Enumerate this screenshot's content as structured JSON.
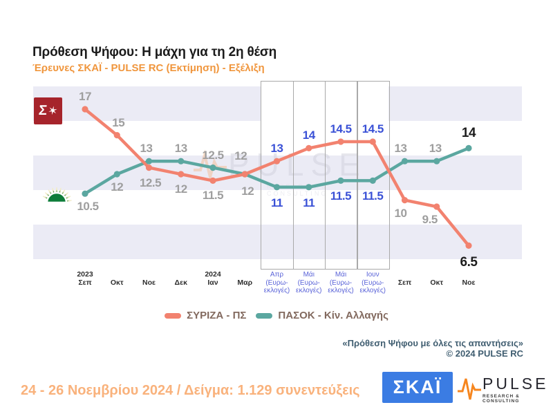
{
  "header": {
    "title": "Πρόθεση Ψήφου: Η μάχη για τη 2η θέση",
    "subtitle": "Έρευνες ΣΚΑΪ - PULSE RC   (Εκτίμηση) - Εξέλιξη"
  },
  "chart_data": {
    "type": "line",
    "title": "Πρόθεση Ψήφου: Η μάχη για τη 2η θέση",
    "categories": [
      {
        "lines": [
          "2023",
          "Σεπ"
        ],
        "euro": false
      },
      {
        "lines": [
          "Οκτ"
        ],
        "euro": false
      },
      {
        "lines": [
          "Νοε"
        ],
        "euro": false
      },
      {
        "lines": [
          "Δεκ"
        ],
        "euro": false
      },
      {
        "lines": [
          "2024",
          "Ιαν"
        ],
        "euro": false
      },
      {
        "lines": [
          "Μαρ"
        ],
        "euro": false
      },
      {
        "lines": [
          "Απρ",
          "(Ευρω-",
          "εκλογές)"
        ],
        "euro": true
      },
      {
        "lines": [
          "Μάι",
          "(Ευρω-",
          "εκλογές)"
        ],
        "euro": true
      },
      {
        "lines": [
          "Μάι",
          "(Ευρω-",
          "εκλογές)"
        ],
        "euro": true
      },
      {
        "lines": [
          "Ιουν",
          "(Ευρω-",
          "εκλογές)"
        ],
        "euro": true
      },
      {
        "lines": [
          "Σεπ"
        ],
        "euro": false
      },
      {
        "lines": [
          "Οκτ"
        ],
        "euro": false
      },
      {
        "lines": [
          "Νοε"
        ],
        "euro": false
      }
    ],
    "series": [
      {
        "name": "ΣΥΡΙΖΑ - ΠΣ",
        "color": "#f2826f",
        "values": [
          17,
          15,
          12.5,
          12,
          11.5,
          12,
          13,
          14,
          14.5,
          14.5,
          10,
          9.5,
          6.5
        ],
        "label_side": [
          "above",
          "above",
          "below",
          "below",
          "below",
          "below",
          "above",
          "above",
          "above",
          "above",
          "below",
          "below",
          "below"
        ],
        "label_offsets": [
          [
            0,
            0
          ],
          [
            2,
            0
          ],
          [
            2,
            3
          ],
          [
            0,
            3
          ],
          [
            0,
            3
          ],
          [
            4,
            6
          ],
          [
            0,
            0
          ],
          [
            0,
            0
          ],
          [
            0,
            0
          ],
          [
            0,
            0
          ],
          [
            -6,
            0
          ],
          [
            -10,
            0
          ],
          [
            0,
            5
          ]
        ]
      },
      {
        "name": "ΠΑΣΟΚ - Κίν. Αλλαγής",
        "color": "#5ba7a0",
        "values": [
          10.5,
          12,
          13,
          13,
          12.5,
          12,
          11,
          11,
          11.5,
          11.5,
          13,
          13,
          14
        ],
        "label_side": [
          "below",
          "below",
          "above",
          "above",
          "above",
          "above",
          "below",
          "below",
          "below",
          "below",
          "above",
          "above",
          "above"
        ],
        "label_offsets": [
          [
            4,
            0
          ],
          [
            0,
            0
          ],
          [
            -4,
            0
          ],
          [
            0,
            0
          ],
          [
            0,
            0
          ],
          [
            -6,
            -8
          ],
          [
            0,
            4
          ],
          [
            0,
            4
          ],
          [
            0,
            4
          ],
          [
            0,
            4
          ],
          [
            -6,
            0
          ],
          [
            -2,
            0
          ],
          [
            0,
            -2
          ]
        ]
      }
    ],
    "label_colors": [
      "gray",
      "gray",
      "gray",
      "gray",
      "gray",
      "gray",
      "blue",
      "blue",
      "blue",
      "blue",
      "gray",
      "gray",
      "black"
    ],
    "highlight_from": 6,
    "highlight_to": 9,
    "ylim": [
      6,
      18
    ],
    "grid": "horizontal-bands",
    "legend_position": "bottom"
  },
  "colors": {
    "gray_label": "#9e9e9e",
    "blue_label": "#3a51d6",
    "black_label": "#1c1c1c",
    "stripe": "#ebebf5",
    "box_border": "#a9a9a9",
    "subtitle_orange": "#f0963d",
    "footer_orange": "#f9b27c",
    "footnote_slate": "#3f5d70",
    "skai_blue": "#3b7ce3",
    "syriza_red": "#a6242b",
    "pasok_green": "#0e7d3a"
  },
  "watermark": {
    "text": "PULSE",
    "subtext": "RESEARCH & CONSULTING"
  },
  "footnote": {
    "line1": "«Πρόθεση Ψήφου με όλες τις απαντήσεις»",
    "line2": "©  2024  PULSE RC"
  },
  "footer": {
    "text": "24 - 26 Νοεμβρίου 2024  /  Δείγμα:  1.129 συνεντεύξεις"
  },
  "logos": {
    "skai_text": "ΣΚΑΪ",
    "pulse_text": "PULSE",
    "pulse_subtext": "RESEARCH & CONSULTING",
    "syriza_glyph": "Σ",
    "syriza_star": "✶"
  }
}
